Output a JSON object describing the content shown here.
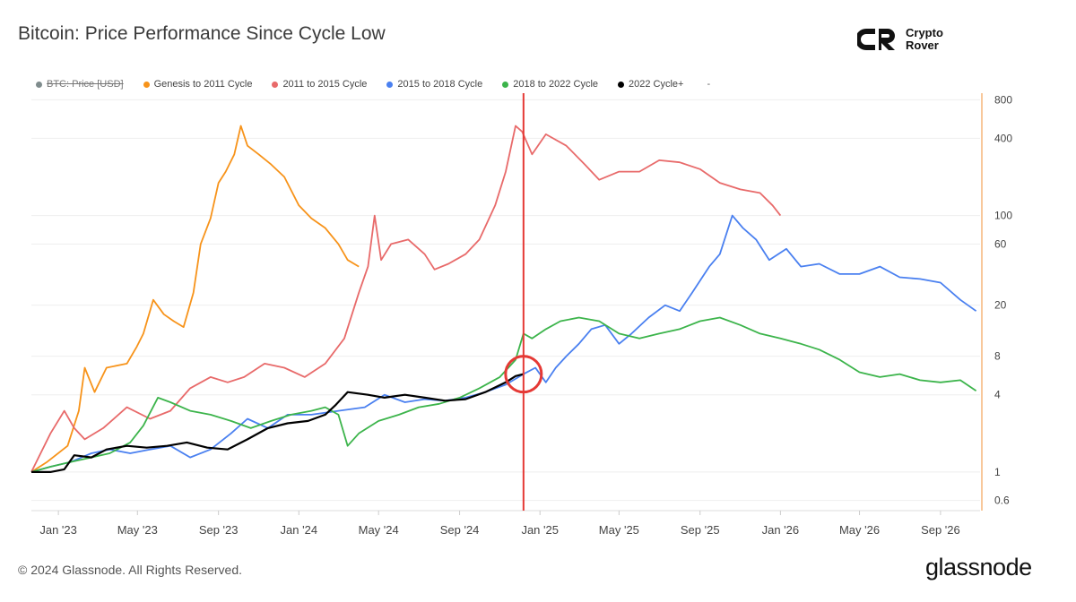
{
  "header": {
    "title": "Bitcoin: Price Performance Since Cycle Low",
    "brand": "Crypto Rover"
  },
  "footer": {
    "copyright": "© 2024 Glassnode. All Rights Reserved.",
    "logo": "glassnode"
  },
  "legend": {
    "extra": "-"
  },
  "colors": {
    "btc_price": "#7f8c8d",
    "genesis": "#f7931a",
    "c2011": "#e86a6a",
    "c2015": "#4a80f0",
    "c2018": "#3cb44b",
    "c2022": "#000000",
    "marker": "#e53935",
    "axis": "#f5b57a"
  },
  "chart_data": {
    "type": "line",
    "title": "Bitcoin: Price Performance Since Cycle Low",
    "y_scale": "log",
    "x_type": "date",
    "xlim": [
      "2022-11-21",
      "2026-10-31"
    ],
    "ylim": [
      0.5,
      900
    ],
    "x_ticks": [
      "Jan '23",
      "May '23",
      "Sep '23",
      "Jan '24",
      "May '24",
      "Sep '24",
      "Jan '25",
      "May '25",
      "Sep '25",
      "Jan '26",
      "May '26",
      "Sep '26"
    ],
    "x_tick_dates": [
      "2023-01-01",
      "2023-05-01",
      "2023-09-01",
      "2024-01-01",
      "2024-05-01",
      "2024-09-01",
      "2025-01-01",
      "2025-05-01",
      "2025-09-01",
      "2026-01-01",
      "2026-05-01",
      "2026-09-01"
    ],
    "y_ticks": [
      0.6,
      1,
      4,
      8,
      20,
      60,
      100,
      400,
      800
    ],
    "y_tick_labels": [
      "0.6",
      "1",
      "4",
      "8",
      "20",
      "60",
      "100",
      "400",
      "800"
    ],
    "grid": true,
    "legend_position": "top-left",
    "marker_line_date": "2024-12-07",
    "marker_circle": {
      "date": "2024-12-07",
      "value": 5.8
    },
    "series": [
      {
        "name": "BTC: Price [USD]",
        "key": "btc_price",
        "disabled": true,
        "points": []
      },
      {
        "name": "Genesis to 2011 Cycle",
        "key": "genesis",
        "points": [
          [
            "2022-11-21",
            1.0
          ],
          [
            "2022-12-15",
            1.2
          ],
          [
            "2023-01-15",
            1.6
          ],
          [
            "2023-02-01",
            3.0
          ],
          [
            "2023-02-10",
            6.5
          ],
          [
            "2023-02-25",
            4.2
          ],
          [
            "2023-03-15",
            6.5
          ],
          [
            "2023-04-15",
            7.0
          ],
          [
            "2023-04-30",
            9.5
          ],
          [
            "2023-05-10",
            12.0
          ],
          [
            "2023-05-25",
            22.0
          ],
          [
            "2023-06-10",
            17.0
          ],
          [
            "2023-06-25",
            15.0
          ],
          [
            "2023-07-10",
            13.5
          ],
          [
            "2023-07-25",
            25.0
          ],
          [
            "2023-08-05",
            60.0
          ],
          [
            "2023-08-20",
            95.0
          ],
          [
            "2023-09-01",
            180.0
          ],
          [
            "2023-09-12",
            220.0
          ],
          [
            "2023-09-25",
            300.0
          ],
          [
            "2023-10-05",
            500.0
          ],
          [
            "2023-10-15",
            350.0
          ],
          [
            "2023-11-01",
            300.0
          ],
          [
            "2023-11-20",
            250.0
          ],
          [
            "2023-12-10",
            200.0
          ],
          [
            "2024-01-01",
            120.0
          ],
          [
            "2024-01-20",
            95.0
          ],
          [
            "2024-02-10",
            80.0
          ],
          [
            "2024-03-01",
            60.0
          ],
          [
            "2024-03-15",
            45.0
          ],
          [
            "2024-04-01",
            40.0
          ]
        ]
      },
      {
        "name": "2011 to 2015 Cycle",
        "key": "c2011",
        "points": [
          [
            "2022-11-21",
            1.0
          ],
          [
            "2022-12-05",
            1.4
          ],
          [
            "2022-12-20",
            2.0
          ],
          [
            "2023-01-10",
            3.0
          ],
          [
            "2023-01-25",
            2.2
          ],
          [
            "2023-02-10",
            1.8
          ],
          [
            "2023-03-10",
            2.2
          ],
          [
            "2023-04-15",
            3.2
          ],
          [
            "2023-05-20",
            2.6
          ],
          [
            "2023-06-20",
            3.0
          ],
          [
            "2023-07-20",
            4.5
          ],
          [
            "2023-08-20",
            5.5
          ],
          [
            "2023-09-15",
            5.0
          ],
          [
            "2023-10-10",
            5.5
          ],
          [
            "2023-11-10",
            7.0
          ],
          [
            "2023-12-10",
            6.5
          ],
          [
            "2024-01-10",
            5.5
          ],
          [
            "2024-02-10",
            7.0
          ],
          [
            "2024-03-10",
            11.0
          ],
          [
            "2024-04-01",
            25.0
          ],
          [
            "2024-04-15",
            40.0
          ],
          [
            "2024-04-25",
            100.0
          ],
          [
            "2024-05-05",
            45.0
          ],
          [
            "2024-05-20",
            60.0
          ],
          [
            "2024-06-15",
            65.0
          ],
          [
            "2024-07-10",
            50.0
          ],
          [
            "2024-07-25",
            38.0
          ],
          [
            "2024-08-15",
            42.0
          ],
          [
            "2024-09-10",
            50.0
          ],
          [
            "2024-10-01",
            65.0
          ],
          [
            "2024-10-25",
            120.0
          ],
          [
            "2024-11-10",
            220.0
          ],
          [
            "2024-11-25",
            500.0
          ],
          [
            "2024-12-05",
            450.0
          ],
          [
            "2024-12-20",
            300.0
          ],
          [
            "2025-01-10",
            430.0
          ],
          [
            "2025-02-10",
            350.0
          ],
          [
            "2025-03-10",
            250.0
          ],
          [
            "2025-04-01",
            190.0
          ],
          [
            "2025-05-01",
            220.0
          ],
          [
            "2025-06-01",
            220.0
          ],
          [
            "2025-07-01",
            270.0
          ],
          [
            "2025-08-01",
            260.0
          ],
          [
            "2025-09-01",
            230.0
          ],
          [
            "2025-10-01",
            180.0
          ],
          [
            "2025-11-01",
            160.0
          ],
          [
            "2025-12-01",
            150.0
          ],
          [
            "2025-12-20",
            120.0
          ],
          [
            "2026-01-01",
            100.0
          ]
        ]
      },
      {
        "name": "2015 to 2018 Cycle",
        "key": "c2015",
        "points": [
          [
            "2022-11-21",
            1.0
          ],
          [
            "2022-12-20",
            1.1
          ],
          [
            "2023-01-20",
            1.2
          ],
          [
            "2023-02-20",
            1.4
          ],
          [
            "2023-03-20",
            1.5
          ],
          [
            "2023-04-20",
            1.4
          ],
          [
            "2023-05-20",
            1.5
          ],
          [
            "2023-06-20",
            1.6
          ],
          [
            "2023-07-20",
            1.3
          ],
          [
            "2023-08-20",
            1.5
          ],
          [
            "2023-09-20",
            2.0
          ],
          [
            "2023-10-15",
            2.6
          ],
          [
            "2023-11-15",
            2.2
          ],
          [
            "2023-12-15",
            2.8
          ],
          [
            "2024-01-20",
            2.8
          ],
          [
            "2024-03-01",
            3.0
          ],
          [
            "2024-04-10",
            3.2
          ],
          [
            "2024-05-10",
            4.0
          ],
          [
            "2024-06-10",
            3.5
          ],
          [
            "2024-07-10",
            3.7
          ],
          [
            "2024-08-10",
            3.6
          ],
          [
            "2024-09-10",
            3.8
          ],
          [
            "2024-10-10",
            4.2
          ],
          [
            "2024-11-10",
            4.8
          ],
          [
            "2024-12-07",
            5.8
          ],
          [
            "2024-12-25",
            6.5
          ],
          [
            "2025-01-10",
            5.0
          ],
          [
            "2025-01-25",
            6.5
          ],
          [
            "2025-02-10",
            8.0
          ],
          [
            "2025-03-01",
            10.0
          ],
          [
            "2025-03-20",
            13.0
          ],
          [
            "2025-04-10",
            14.0
          ],
          [
            "2025-05-01",
            10.0
          ],
          [
            "2025-05-20",
            12.0
          ],
          [
            "2025-06-15",
            16.0
          ],
          [
            "2025-07-10",
            20.0
          ],
          [
            "2025-08-01",
            18.0
          ],
          [
            "2025-08-20",
            25.0
          ],
          [
            "2025-09-15",
            40.0
          ],
          [
            "2025-10-01",
            50.0
          ],
          [
            "2025-10-20",
            100.0
          ],
          [
            "2025-11-05",
            80.0
          ],
          [
            "2025-11-25",
            65.0
          ],
          [
            "2025-12-15",
            45.0
          ],
          [
            "2026-01-10",
            55.0
          ],
          [
            "2026-02-01",
            40.0
          ],
          [
            "2026-03-01",
            42.0
          ],
          [
            "2026-04-01",
            35.0
          ],
          [
            "2026-05-01",
            35.0
          ],
          [
            "2026-06-01",
            40.0
          ],
          [
            "2026-07-01",
            33.0
          ],
          [
            "2026-08-01",
            32.0
          ],
          [
            "2026-09-01",
            30.0
          ],
          [
            "2026-10-01",
            22.0
          ],
          [
            "2026-10-25",
            18.0
          ]
        ]
      },
      {
        "name": "2018 to 2022 Cycle",
        "key": "c2018",
        "points": [
          [
            "2022-11-21",
            1.0
          ],
          [
            "2022-12-20",
            1.1
          ],
          [
            "2023-01-20",
            1.2
          ],
          [
            "2023-02-20",
            1.3
          ],
          [
            "2023-03-20",
            1.4
          ],
          [
            "2023-04-20",
            1.7
          ],
          [
            "2023-05-10",
            2.3
          ],
          [
            "2023-06-01",
            3.8
          ],
          [
            "2023-06-20",
            3.5
          ],
          [
            "2023-07-20",
            3.0
          ],
          [
            "2023-08-20",
            2.8
          ],
          [
            "2023-09-20",
            2.5
          ],
          [
            "2023-10-20",
            2.2
          ],
          [
            "2023-11-20",
            2.5
          ],
          [
            "2023-12-20",
            2.8
          ],
          [
            "2024-01-20",
            3.0
          ],
          [
            "2024-02-10",
            3.2
          ],
          [
            "2024-03-01",
            2.8
          ],
          [
            "2024-03-15",
            1.6
          ],
          [
            "2024-04-01",
            2.0
          ],
          [
            "2024-05-01",
            2.5
          ],
          [
            "2024-06-01",
            2.8
          ],
          [
            "2024-07-01",
            3.2
          ],
          [
            "2024-08-01",
            3.4
          ],
          [
            "2024-09-01",
            3.8
          ],
          [
            "2024-10-01",
            4.5
          ],
          [
            "2024-11-01",
            5.5
          ],
          [
            "2024-11-25",
            7.5
          ],
          [
            "2024-12-07",
            12.0
          ],
          [
            "2024-12-20",
            11.0
          ],
          [
            "2025-01-10",
            13.0
          ],
          [
            "2025-02-01",
            15.0
          ],
          [
            "2025-03-01",
            16.0
          ],
          [
            "2025-04-01",
            15.0
          ],
          [
            "2025-05-01",
            12.0
          ],
          [
            "2025-06-01",
            11.0
          ],
          [
            "2025-07-01",
            12.0
          ],
          [
            "2025-08-01",
            13.0
          ],
          [
            "2025-09-01",
            15.0
          ],
          [
            "2025-10-01",
            16.0
          ],
          [
            "2025-11-01",
            14.0
          ],
          [
            "2025-12-01",
            12.0
          ],
          [
            "2026-01-01",
            11.0
          ],
          [
            "2026-02-01",
            10.0
          ],
          [
            "2026-03-01",
            9.0
          ],
          [
            "2026-04-01",
            7.5
          ],
          [
            "2026-05-01",
            6.0
          ],
          [
            "2026-06-01",
            5.5
          ],
          [
            "2026-07-01",
            5.8
          ],
          [
            "2026-08-01",
            5.2
          ],
          [
            "2026-09-01",
            5.0
          ],
          [
            "2026-10-01",
            5.2
          ],
          [
            "2026-10-25",
            4.3
          ]
        ]
      },
      {
        "name": "2022 Cycle+",
        "key": "c2022",
        "points": [
          [
            "2022-11-21",
            1.0
          ],
          [
            "2022-12-20",
            1.0
          ],
          [
            "2023-01-10",
            1.05
          ],
          [
            "2023-01-25",
            1.35
          ],
          [
            "2023-02-20",
            1.3
          ],
          [
            "2023-03-15",
            1.5
          ],
          [
            "2023-04-15",
            1.6
          ],
          [
            "2023-05-15",
            1.55
          ],
          [
            "2023-06-15",
            1.6
          ],
          [
            "2023-07-15",
            1.7
          ],
          [
            "2023-08-15",
            1.55
          ],
          [
            "2023-09-15",
            1.5
          ],
          [
            "2023-10-15",
            1.8
          ],
          [
            "2023-11-15",
            2.2
          ],
          [
            "2023-12-15",
            2.4
          ],
          [
            "2024-01-15",
            2.5
          ],
          [
            "2024-02-10",
            2.8
          ],
          [
            "2024-02-25",
            3.3
          ],
          [
            "2024-03-15",
            4.2
          ],
          [
            "2024-04-15",
            4.0
          ],
          [
            "2024-05-10",
            3.8
          ],
          [
            "2024-06-10",
            4.0
          ],
          [
            "2024-07-10",
            3.8
          ],
          [
            "2024-08-10",
            3.6
          ],
          [
            "2024-09-10",
            3.7
          ],
          [
            "2024-10-10",
            4.2
          ],
          [
            "2024-11-10",
            5.0
          ],
          [
            "2024-11-25",
            5.6
          ],
          [
            "2024-12-07",
            5.8
          ]
        ]
      }
    ]
  }
}
